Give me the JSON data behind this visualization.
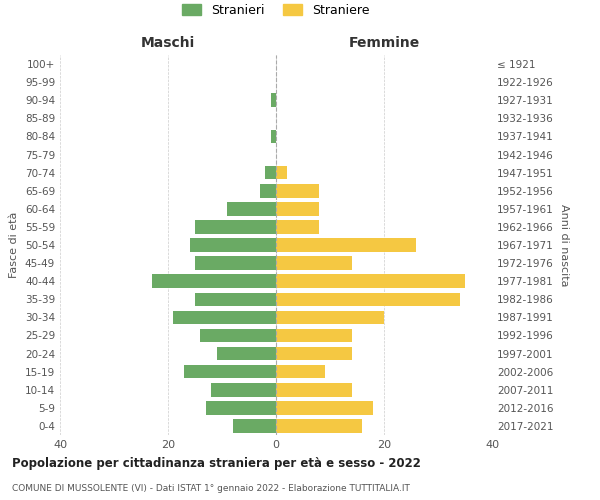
{
  "age_groups": [
    "0-4",
    "5-9",
    "10-14",
    "15-19",
    "20-24",
    "25-29",
    "30-34",
    "35-39",
    "40-44",
    "45-49",
    "50-54",
    "55-59",
    "60-64",
    "65-69",
    "70-74",
    "75-79",
    "80-84",
    "85-89",
    "90-94",
    "95-99",
    "100+"
  ],
  "birth_years": [
    "2017-2021",
    "2012-2016",
    "2007-2011",
    "2002-2006",
    "1997-2001",
    "1992-1996",
    "1987-1991",
    "1982-1986",
    "1977-1981",
    "1972-1976",
    "1967-1971",
    "1962-1966",
    "1957-1961",
    "1952-1956",
    "1947-1951",
    "1942-1946",
    "1937-1941",
    "1932-1936",
    "1927-1931",
    "1922-1926",
    "≤ 1921"
  ],
  "maschi": [
    8,
    13,
    12,
    17,
    11,
    14,
    19,
    15,
    23,
    15,
    16,
    15,
    9,
    3,
    2,
    0,
    1,
    0,
    1,
    0,
    0
  ],
  "femmine": [
    16,
    18,
    14,
    9,
    14,
    14,
    20,
    34,
    35,
    14,
    26,
    8,
    8,
    8,
    2,
    0,
    0,
    0,
    0,
    0,
    0
  ],
  "maschi_color": "#6aaa64",
  "femmine_color": "#f5c842",
  "background_color": "#ffffff",
  "grid_color": "#cccccc",
  "title": "Popolazione per cittadinanza straniera per età e sesso - 2022",
  "subtitle": "COMUNE DI MUSSOLENTE (VI) - Dati ISTAT 1° gennaio 2022 - Elaborazione TUTTITALIA.IT",
  "xlabel_left": "Maschi",
  "xlabel_right": "Femmine",
  "ylabel_left": "Fasce di età",
  "ylabel_right": "Anni di nascita",
  "legend_stranieri": "Stranieri",
  "legend_straniere": "Straniere",
  "xlim": 40
}
